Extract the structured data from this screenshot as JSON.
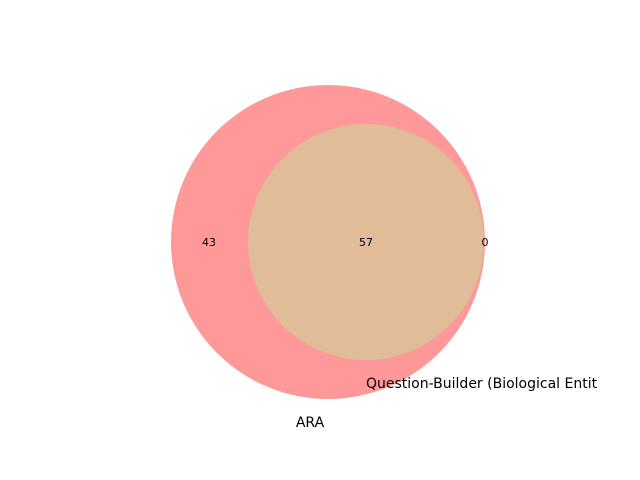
{
  "chart_data": {
    "type": "venn",
    "sets": [
      {
        "name": "ARA",
        "color": "#ff9999"
      },
      {
        "name": "Question-Builder (Biological Entit",
        "color": "#e0bc98"
      }
    ],
    "regions": [
      {
        "sets": [
          "ARA"
        ],
        "label": "43",
        "value": 43
      },
      {
        "sets": [
          "ARA",
          "Question-Builder (Biological Entit"
        ],
        "label": "57",
        "value": 57
      },
      {
        "sets": [
          "Question-Builder (Biological Entit"
        ],
        "label": "0",
        "value": 0
      }
    ],
    "title": ""
  }
}
